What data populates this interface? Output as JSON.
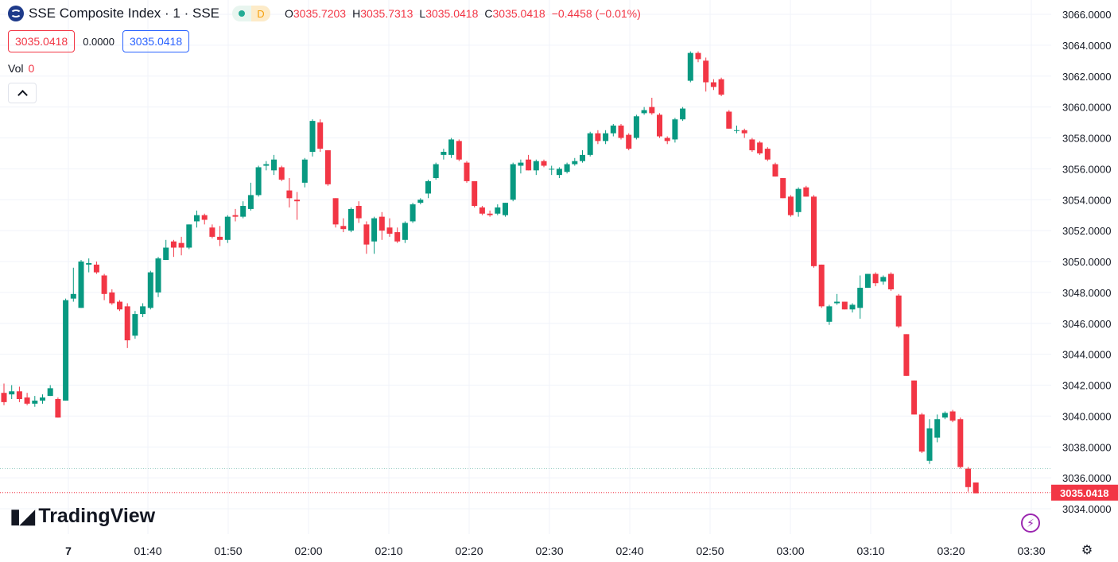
{
  "header": {
    "title": "SSE Composite Index · 1 · SSE",
    "status_letter": "D",
    "ohlc": [
      {
        "key": "O",
        "value": "3035.7203"
      },
      {
        "key": "H",
        "value": "3035.7313"
      },
      {
        "key": "L",
        "value": "3035.0418"
      },
      {
        "key": "C",
        "value": "3035.0418"
      },
      {
        "key": "",
        "value": "−0.4458 (−0.01%)"
      }
    ]
  },
  "price_boxes": {
    "sell": "3035.0418",
    "spread": "0.0000",
    "buy": "3035.0418"
  },
  "volume": {
    "label": "Vol",
    "value": "0"
  },
  "branding": {
    "name": "TradingView"
  },
  "colors": {
    "up": "#089981",
    "down": "#f23645",
    "grid": "#f0f3fa",
    "text": "#131722"
  },
  "icons": [
    "symbol-logo-icon",
    "status-dot-icon",
    "chevron-up-icon",
    "tradingview-logo-icon",
    "flash-icon",
    "settings-icon"
  ],
  "chart_data": {
    "type": "candlestick",
    "y_ticks": [
      "3066.0000",
      "3064.0000",
      "3062.0000",
      "3060.0000",
      "3058.0000",
      "3056.0000",
      "3054.0000",
      "3052.0000",
      "3050.0000",
      "3048.0000",
      "3046.0000",
      "3044.0000",
      "3042.0000",
      "3040.0000",
      "3038.0000",
      "3036.0000",
      "3034.0000"
    ],
    "ylim": [
      3033.0,
      3067.0
    ],
    "x_ticks": [
      "7",
      "01:40",
      "01:50",
      "02:00",
      "02:10",
      "02:20",
      "02:30",
      "02:40",
      "02:50",
      "03:00",
      "03:10",
      "03:20",
      "03:30"
    ],
    "last_price_label": "3035.0418",
    "last_price": 3035.0418,
    "prev_close": 3036.6,
    "candles": [
      [
        3041.5,
        3042.1,
        3040.7,
        3040.9
      ],
      [
        3041.4,
        3042.0,
        3041.1,
        3041.6
      ],
      [
        3041.6,
        3041.9,
        3040.9,
        3041.1
      ],
      [
        3041.2,
        3041.5,
        3040.7,
        3040.8
      ],
      [
        3040.8,
        3041.3,
        3040.6,
        3041.0
      ],
      [
        3041.0,
        3041.4,
        3040.8,
        3041.2
      ],
      [
        3041.3,
        3042.0,
        3041.3,
        3041.8
      ],
      [
        3041.1,
        3041.2,
        3039.9,
        3039.9
      ],
      [
        3041.0,
        3047.6,
        3041.0,
        3047.5
      ],
      [
        3047.6,
        3049.6,
        3047.4,
        3047.9
      ],
      [
        3047.0,
        3050.1,
        3047.0,
        3050.0
      ],
      [
        3049.8,
        3050.2,
        3049.3,
        3049.9
      ],
      [
        3049.8,
        3050.0,
        3049.2,
        3049.3
      ],
      [
        3049.1,
        3049.2,
        3047.5,
        3047.9
      ],
      [
        3048.0,
        3048.2,
        3047.2,
        3047.3
      ],
      [
        3047.4,
        3047.5,
        3046.8,
        3046.9
      ],
      [
        3047.1,
        3047.3,
        3044.4,
        3044.9
      ],
      [
        3045.2,
        3046.8,
        3045.0,
        3046.6
      ],
      [
        3046.6,
        3047.3,
        3046.4,
        3047.1
      ],
      [
        3047.0,
        3049.4,
        3046.9,
        3049.3
      ],
      [
        3048.0,
        3050.3,
        3047.7,
        3050.2
      ],
      [
        3050.1,
        3051.4,
        3050.1,
        3050.9
      ],
      [
        3051.3,
        3051.4,
        3050.3,
        3050.9
      ],
      [
        3051.2,
        3051.6,
        3050.4,
        3050.9
      ],
      [
        3050.9,
        3052.4,
        3050.8,
        3052.4
      ],
      [
        3052.6,
        3053.3,
        3052.2,
        3053.0
      ],
      [
        3053.0,
        3053.1,
        3052.4,
        3052.7
      ],
      [
        3052.2,
        3052.4,
        3051.5,
        3051.6
      ],
      [
        3051.6,
        3052.3,
        3051.0,
        3051.4
      ],
      [
        3051.4,
        3053.0,
        3051.2,
        3052.9
      ],
      [
        3053.0,
        3053.4,
        3052.6,
        3052.9
      ],
      [
        3052.9,
        3053.9,
        3052.8,
        3053.6
      ],
      [
        3053.4,
        3055.1,
        3053.3,
        3054.3
      ],
      [
        3054.3,
        3056.2,
        3054.2,
        3056.1
      ],
      [
        3056.2,
        3056.5,
        3055.9,
        3056.3
      ],
      [
        3055.9,
        3056.9,
        3055.6,
        3056.6
      ],
      [
        3056.1,
        3056.2,
        3055.2,
        3055.3
      ],
      [
        3054.6,
        3055.4,
        3053.5,
        3054.1
      ],
      [
        3054.0,
        3054.5,
        3052.7,
        3053.9
      ],
      [
        3055.1,
        3056.7,
        3054.8,
        3056.6
      ],
      [
        3057.1,
        3059.2,
        3056.8,
        3059.1
      ],
      [
        3059.0,
        3059.2,
        3057.1,
        3057.3
      ],
      [
        3057.2,
        3057.2,
        3054.9,
        3055.0
      ],
      [
        3054.1,
        3054.1,
        3052.2,
        3052.4
      ],
      [
        3052.3,
        3052.8,
        3051.9,
        3052.1
      ],
      [
        3052.0,
        3053.5,
        3051.9,
        3053.4
      ],
      [
        3053.6,
        3053.9,
        3052.5,
        3052.8
      ],
      [
        3052.4,
        3052.6,
        3050.5,
        3051.1
      ],
      [
        3051.3,
        3052.9,
        3050.5,
        3052.8
      ],
      [
        3052.9,
        3053.2,
        3051.4,
        3052.0
      ],
      [
        3052.2,
        3052.8,
        3051.6,
        3051.8
      ],
      [
        3051.9,
        3052.2,
        3051.2,
        3051.3
      ],
      [
        3051.4,
        3052.6,
        3051.2,
        3052.5
      ],
      [
        3052.6,
        3053.8,
        3052.5,
        3053.7
      ],
      [
        3053.8,
        3054.1,
        3053.7,
        3054.0
      ],
      [
        3054.4,
        3055.3,
        3054.1,
        3055.2
      ],
      [
        3055.4,
        3056.4,
        3055.3,
        3056.3
      ],
      [
        3056.9,
        3057.3,
        3056.6,
        3057.1
      ],
      [
        3056.9,
        3058.0,
        3056.7,
        3057.9
      ],
      [
        3057.8,
        3057.9,
        3056.5,
        3056.6
      ],
      [
        3056.4,
        3056.5,
        3055.1,
        3055.2
      ],
      [
        3055.2,
        3055.2,
        3053.5,
        3053.6
      ],
      [
        3053.5,
        3053.6,
        3053.0,
        3053.1
      ],
      [
        3053.1,
        3053.3,
        3052.9,
        3053.0
      ],
      [
        3053.1,
        3053.7,
        3053.0,
        3053.5
      ],
      [
        3053.0,
        3053.8,
        3052.9,
        3053.8
      ],
      [
        3054.0,
        3056.4,
        3053.9,
        3056.3
      ],
      [
        3056.2,
        3056.6,
        3055.7,
        3056.4
      ],
      [
        3056.6,
        3056.9,
        3055.9,
        3055.9
      ],
      [
        3055.9,
        3056.6,
        3055.6,
        3056.5
      ],
      [
        3056.5,
        3056.6,
        3056.1,
        3056.2
      ],
      [
        3056.0,
        3056.2,
        3055.6,
        3056.0
      ],
      [
        3055.6,
        3056.1,
        3055.4,
        3056.0
      ],
      [
        3055.8,
        3056.4,
        3055.7,
        3056.3
      ],
      [
        3056.3,
        3056.7,
        3056.2,
        3056.5
      ],
      [
        3056.5,
        3057.2,
        3056.4,
        3056.9
      ],
      [
        3056.9,
        3058.4,
        3056.8,
        3058.3
      ],
      [
        3058.3,
        3058.5,
        3057.6,
        3057.8
      ],
      [
        3057.8,
        3058.5,
        3057.6,
        3058.3
      ],
      [
        3058.3,
        3058.9,
        3058.1,
        3058.8
      ],
      [
        3058.8,
        3058.9,
        3057.9,
        3058.0
      ],
      [
        3058.2,
        3058.3,
        3057.2,
        3057.3
      ],
      [
        3058.0,
        3059.5,
        3057.9,
        3059.4
      ],
      [
        3059.6,
        3060.0,
        3059.5,
        3059.8
      ],
      [
        3060.0,
        3060.6,
        3059.5,
        3059.6
      ],
      [
        3059.5,
        3059.6,
        3058.0,
        3058.1
      ],
      [
        3058.0,
        3058.1,
        3057.6,
        3057.8
      ],
      [
        3057.9,
        3059.3,
        3057.7,
        3059.2
      ],
      [
        3059.2,
        3060.0,
        3059.1,
        3059.9
      ],
      [
        3061.7,
        3063.6,
        3061.6,
        3063.5
      ],
      [
        3063.5,
        3063.6,
        3062.9,
        3063.1
      ],
      [
        3063.0,
        3063.2,
        3061.0,
        3061.6
      ],
      [
        3061.6,
        3061.8,
        3061.1,
        3061.3
      ],
      [
        3061.8,
        3061.9,
        3060.7,
        3060.8
      ],
      [
        3059.7,
        3059.8,
        3058.6,
        3058.6
      ],
      [
        3058.5,
        3058.8,
        3058.3,
        3058.5
      ],
      [
        3058.5,
        3058.6,
        3058.0,
        3058.3
      ],
      [
        3057.9,
        3058.0,
        3057.1,
        3057.2
      ],
      [
        3057.7,
        3057.8,
        3056.9,
        3057.0
      ],
      [
        3057.3,
        3057.4,
        3056.5,
        3056.6
      ],
      [
        3056.3,
        3056.4,
        3055.5,
        3055.5
      ],
      [
        3055.4,
        3055.4,
        3054.1,
        3054.1
      ],
      [
        3054.2,
        3054.3,
        3052.9,
        3053.0
      ],
      [
        3053.2,
        3054.8,
        3052.9,
        3054.7
      ],
      [
        3054.8,
        3054.9,
        3054.2,
        3054.2
      ],
      [
        3054.2,
        3054.3,
        3049.6,
        3049.7
      ],
      [
        3049.8,
        3049.8,
        3047.0,
        3047.1
      ],
      [
        3046.1,
        3047.2,
        3045.9,
        3047.1
      ],
      [
        3047.3,
        3047.9,
        3047.2,
        3047.4
      ],
      [
        3047.4,
        3047.4,
        3046.9,
        3046.9
      ],
      [
        3046.9,
        3047.3,
        3046.7,
        3047.2
      ],
      [
        3047.0,
        3049.1,
        3046.3,
        3048.3
      ],
      [
        3048.3,
        3049.2,
        3048.3,
        3049.2
      ],
      [
        3049.2,
        3049.3,
        3048.4,
        3048.6
      ],
      [
        3048.7,
        3049.1,
        3048.5,
        3049.0
      ],
      [
        3049.2,
        3049.3,
        3048.1,
        3048.2
      ],
      [
        3047.8,
        3047.9,
        3045.7,
        3045.8
      ],
      [
        3045.3,
        3045.3,
        3042.6,
        3042.6
      ],
      [
        3042.3,
        3042.3,
        3040.1,
        3040.1
      ],
      [
        3040.1,
        3040.2,
        3037.6,
        3037.7
      ],
      [
        3037.1,
        3039.8,
        3036.9,
        3039.2
      ],
      [
        3038.6,
        3040.1,
        3038.3,
        3039.8
      ],
      [
        3039.9,
        3040.3,
        3039.8,
        3040.2
      ],
      [
        3040.3,
        3040.4,
        3039.6,
        3039.7
      ],
      [
        3039.8,
        3039.9,
        3036.6,
        3036.7
      ],
      [
        3036.6,
        3036.7,
        3035.1,
        3035.4
      ],
      [
        3035.7,
        3035.7,
        3035.0,
        3035.0
      ]
    ]
  }
}
